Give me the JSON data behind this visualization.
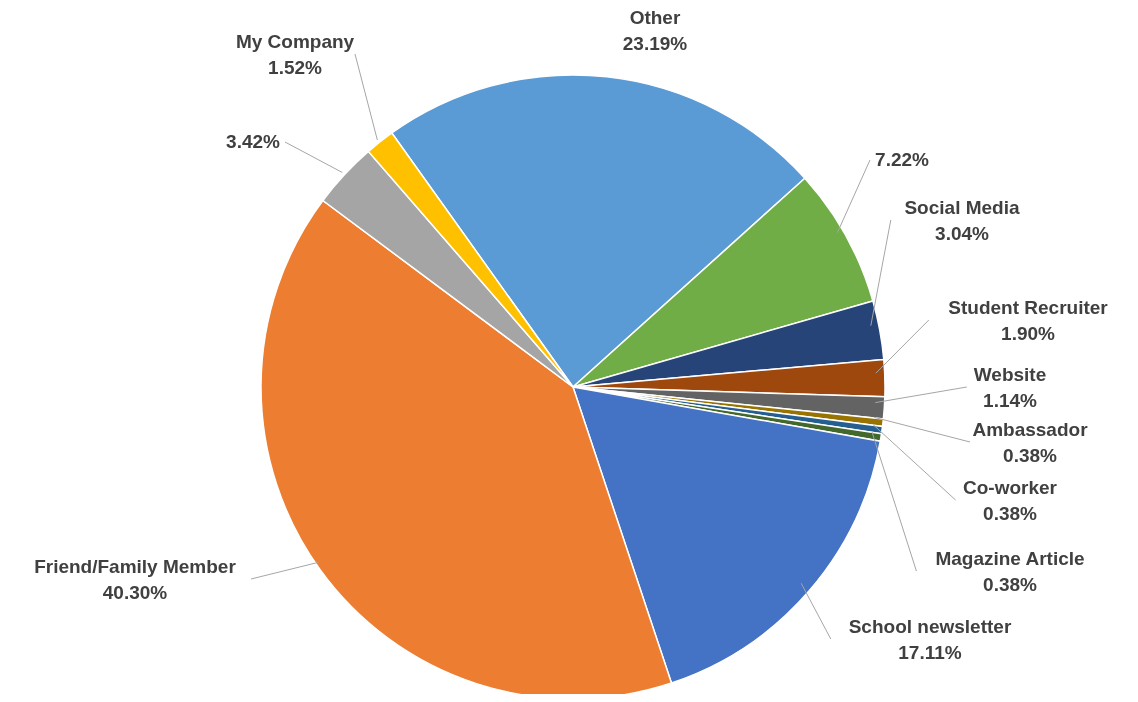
{
  "chart_data": {
    "type": "pie",
    "categories": [
      "Other",
      null,
      "Social Media",
      "Student Recruiter",
      "Website",
      "Ambassador",
      "Co-worker",
      "Magazine Article",
      "School newsletter",
      "Friend/Family Member",
      null,
      "My Company"
    ],
    "values": [
      23.19,
      7.22,
      3.04,
      1.9,
      1.14,
      0.38,
      0.38,
      0.38,
      17.11,
      40.3,
      3.42,
      1.52
    ],
    "value_labels": [
      "23.19%",
      "7.22%",
      "3.04%",
      "1.90%",
      "1.14%",
      "0.38%",
      "0.38%",
      "0.38%",
      "17.11%",
      "40.30%",
      "3.42%",
      "1.52%"
    ],
    "colors": [
      "#5b9bd5",
      "#70ad47",
      "#264478",
      "#9e480e",
      "#636363",
      "#997300",
      "#255e91",
      "#43682b",
      "#4472c4",
      "#ed7d31",
      "#a5a5a5",
      "#ffc000"
    ],
    "legend": false
  }
}
